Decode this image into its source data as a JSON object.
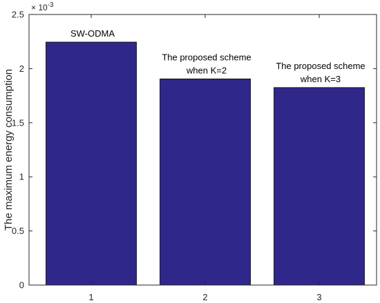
{
  "chart_data": {
    "type": "bar",
    "title": "",
    "xlabel": "",
    "ylabel": "The maximum energy consumption",
    "categories": [
      "1",
      "2",
      "3"
    ],
    "values": [
      0.002245,
      0.001905,
      0.001825
    ],
    "ylim": [
      0,
      0.0025
    ],
    "yticks": [
      0,
      0.0005,
      0.001,
      0.0015,
      0.002,
      0.0025
    ],
    "ytick_labels": [
      "0",
      "0.5",
      "1",
      "1.5",
      "2",
      "2.5"
    ],
    "y_exponent_label": "× 10",
    "y_exponent_power": "-3",
    "annotations": [
      {
        "lines": [
          "SW-ODMA"
        ]
      },
      {
        "lines": [
          "The proposed scheme",
          "when K=2"
        ]
      },
      {
        "lines": [
          "The proposed scheme",
          "when K=3"
        ]
      }
    ],
    "grid": false,
    "legend": "none",
    "colors": {
      "bar": "#30278a",
      "bar_edge": "#000000",
      "axis": "#262626"
    }
  }
}
